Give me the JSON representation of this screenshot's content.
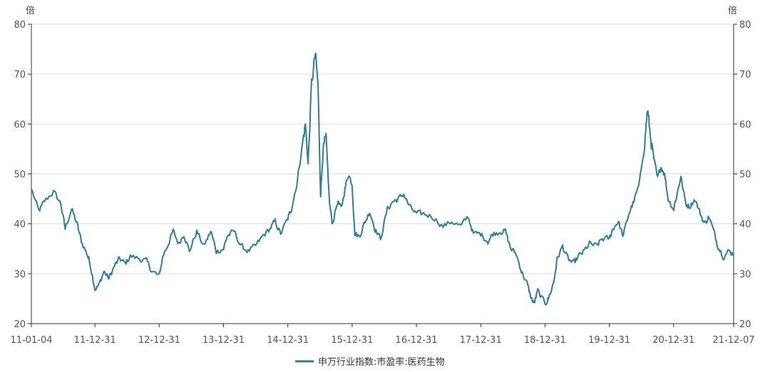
{
  "chart_data": {
    "type": "line",
    "left_unit": "倍",
    "right_unit": "倍",
    "ylim": [
      20,
      80
    ],
    "y_ticks": [
      20,
      30,
      40,
      50,
      60,
      70,
      80
    ],
    "grid": true,
    "x_tick_labels": [
      "11-01-04",
      "11-12-31",
      "12-12-31",
      "13-12-31",
      "14-12-31",
      "15-12-31",
      "16-12-31",
      "17-12-31",
      "18-12-31",
      "19-12-31",
      "20-12-31",
      "21-12-07"
    ],
    "legend_position": "bottom-center",
    "series": [
      {
        "name": "申万行业指数:市盈率:医药生物",
        "color": "#2e7d9a",
        "points": [
          [
            "11-01-04",
            47.0
          ],
          [
            "11-02-15",
            42.5
          ],
          [
            "11-03-20",
            44.5
          ],
          [
            "11-05-10",
            46.5
          ],
          [
            "11-06-20",
            44.0
          ],
          [
            "11-07-15",
            39.0
          ],
          [
            "11-08-20",
            43.0
          ],
          [
            "11-09-20",
            40.0
          ],
          [
            "11-10-15",
            36.5
          ],
          [
            "11-11-15",
            34.0
          ],
          [
            "11-12-01",
            32.5
          ],
          [
            "11-12-31",
            27.0
          ],
          [
            "12-01-20",
            27.5
          ],
          [
            "12-02-20",
            30.5
          ],
          [
            "12-03-20",
            29.0
          ],
          [
            "12-04-20",
            31.5
          ],
          [
            "12-05-20",
            33.0
          ],
          [
            "12-06-20",
            32.0
          ],
          [
            "12-07-20",
            33.5
          ],
          [
            "12-09-10",
            33.0
          ],
          [
            "12-10-20",
            32.5
          ],
          [
            "12-11-20",
            30.5
          ],
          [
            "12-12-31",
            29.5
          ],
          [
            "13-01-20",
            33.5
          ],
          [
            "13-02-20",
            36.0
          ],
          [
            "13-03-20",
            38.5
          ],
          [
            "13-04-20",
            36.0
          ],
          [
            "13-05-20",
            38.0
          ],
          [
            "13-06-20",
            34.5
          ],
          [
            "13-08-01",
            38.5
          ],
          [
            "13-09-10",
            35.5
          ],
          [
            "13-10-20",
            38.5
          ],
          [
            "13-11-20",
            34.5
          ],
          [
            "13-12-31",
            35.0
          ],
          [
            "14-01-20",
            37.5
          ],
          [
            "14-03-01",
            38.5
          ],
          [
            "14-04-10",
            35.5
          ],
          [
            "14-05-20",
            34.5
          ],
          [
            "14-07-01",
            35.5
          ],
          [
            "14-08-10",
            37.5
          ],
          [
            "14-09-20",
            39.0
          ],
          [
            "14-10-20",
            40.5
          ],
          [
            "14-11-20",
            38.0
          ],
          [
            "14-12-31",
            41.0
          ],
          [
            "15-01-20",
            43.0
          ],
          [
            "15-02-20",
            48.0
          ],
          [
            "15-03-20",
            55.0
          ],
          [
            "15-04-10",
            60.0
          ],
          [
            "15-04-25",
            52.0
          ],
          [
            "15-05-15",
            68.0
          ],
          [
            "15-06-05",
            74.0
          ],
          [
            "15-06-20",
            68.0
          ],
          [
            "15-07-05",
            46.0
          ],
          [
            "15-07-20",
            55.0
          ],
          [
            "15-08-05",
            57.0
          ],
          [
            "15-08-25",
            44.0
          ],
          [
            "15-09-10",
            40.0
          ],
          [
            "15-10-10",
            44.5
          ],
          [
            "15-10-30",
            43.0
          ],
          [
            "15-11-20",
            47.0
          ],
          [
            "15-12-10",
            50.0
          ],
          [
            "15-12-31",
            48.0
          ],
          [
            "16-01-15",
            38.0
          ],
          [
            "16-02-10",
            37.5
          ],
          [
            "16-03-10",
            40.0
          ],
          [
            "16-04-10",
            42.5
          ],
          [
            "16-05-10",
            39.0
          ],
          [
            "16-06-10",
            37.0
          ],
          [
            "16-07-20",
            43.0
          ],
          [
            "16-08-20",
            44.5
          ],
          [
            "16-09-20",
            45.0
          ],
          [
            "16-10-20",
            46.0
          ],
          [
            "16-11-20",
            43.5
          ],
          [
            "16-12-31",
            42.0
          ],
          [
            "17-02-10",
            42.0
          ],
          [
            "17-04-01",
            41.5
          ],
          [
            "17-06-01",
            39.5
          ],
          [
            "17-07-20",
            40.5
          ],
          [
            "17-09-10",
            39.5
          ],
          [
            "17-10-20",
            41.5
          ],
          [
            "17-11-20",
            38.0
          ],
          [
            "17-12-31",
            38.0
          ],
          [
            "18-02-10",
            36.5
          ],
          [
            "18-03-10",
            38.0
          ],
          [
            "18-04-20",
            38.5
          ],
          [
            "18-05-20",
            38.5
          ],
          [
            "18-06-20",
            35.0
          ],
          [
            "18-07-20",
            34.0
          ],
          [
            "18-08-20",
            30.5
          ],
          [
            "18-09-20",
            28.0
          ],
          [
            "18-10-15",
            25.0
          ],
          [
            "18-10-30",
            24.0
          ],
          [
            "18-11-20",
            26.5
          ],
          [
            "18-12-31",
            24.0
          ],
          [
            "19-01-20",
            25.0
          ],
          [
            "19-02-20",
            28.5
          ],
          [
            "19-03-10",
            33.0
          ],
          [
            "19-04-10",
            35.5
          ],
          [
            "19-05-10",
            33.0
          ],
          [
            "19-06-10",
            32.0
          ],
          [
            "19-07-10",
            33.5
          ],
          [
            "19-08-10",
            34.5
          ],
          [
            "19-09-10",
            36.0
          ],
          [
            "19-10-20",
            35.5
          ],
          [
            "19-11-20",
            37.0
          ],
          [
            "19-12-31",
            37.0
          ],
          [
            "20-01-20",
            39.0
          ],
          [
            "20-02-20",
            40.5
          ],
          [
            "20-03-20",
            37.5
          ],
          [
            "20-04-20",
            42.0
          ],
          [
            "20-05-20",
            44.5
          ],
          [
            "20-06-20",
            48.0
          ],
          [
            "20-07-20",
            56.5
          ],
          [
            "20-08-05",
            63.0
          ],
          [
            "20-08-20",
            58.0
          ],
          [
            "20-09-10",
            53.0
          ],
          [
            "20-10-01",
            49.0
          ],
          [
            "20-10-20",
            51.5
          ],
          [
            "20-11-10",
            50.0
          ],
          [
            "20-11-30",
            45.0
          ],
          [
            "20-12-31",
            43.0
          ],
          [
            "21-01-20",
            46.0
          ],
          [
            "21-02-10",
            49.5
          ],
          [
            "21-03-10",
            44.0
          ],
          [
            "21-04-01",
            43.5
          ],
          [
            "21-05-01",
            45.0
          ],
          [
            "21-06-01",
            42.0
          ],
          [
            "21-06-25",
            40.0
          ],
          [
            "21-07-20",
            41.5
          ],
          [
            "21-08-20",
            38.0
          ],
          [
            "21-09-10",
            35.5
          ],
          [
            "21-10-10",
            33.5
          ],
          [
            "21-11-10",
            34.5
          ],
          [
            "21-12-07",
            34.0
          ]
        ]
      }
    ]
  }
}
